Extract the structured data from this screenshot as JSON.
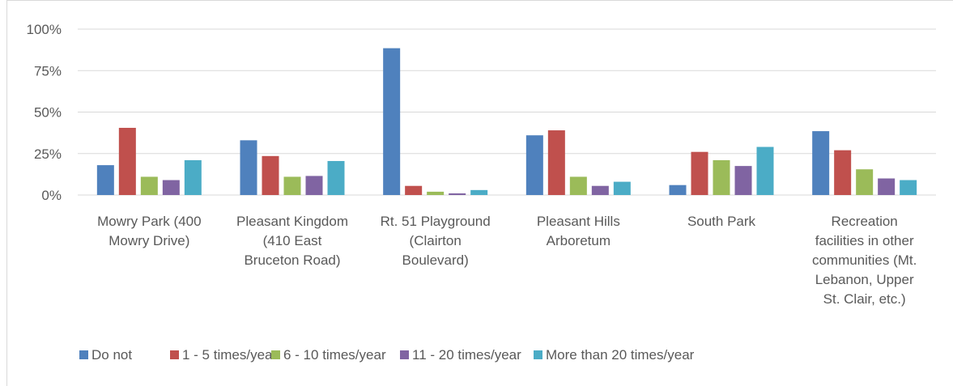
{
  "chart_data": {
    "type": "bar",
    "title": "",
    "xlabel": "",
    "ylabel": "",
    "ylim": [
      0,
      100
    ],
    "yticks": [
      0,
      25,
      50,
      75,
      100
    ],
    "ytick_labels": [
      "0%",
      "25%",
      "50%",
      "75%",
      "100%"
    ],
    "grid": true,
    "legend_position": "bottom",
    "categories": [
      [
        "Mowry Park (400",
        "Mowry Drive)"
      ],
      [
        "Pleasant Kingdom",
        "(410 East",
        "Bruceton Road)"
      ],
      [
        "Rt. 51 Playground",
        "(Clairton",
        "Boulevard)"
      ],
      [
        "Pleasant Hills",
        "Arboretum"
      ],
      [
        "South Park"
      ],
      [
        "Recreation",
        "facilities in other",
        "communities (Mt.",
        "Lebanon, Upper",
        "St. Clair, etc.)"
      ]
    ],
    "series": [
      {
        "name": "Do not",
        "color": "#4f81bd",
        "values": [
          18,
          33,
          88.5,
          36,
          6,
          38.5
        ]
      },
      {
        "name": "1 - 5 times/year",
        "color": "#c0504d",
        "values": [
          40.5,
          23.5,
          5.5,
          39,
          26,
          27
        ]
      },
      {
        "name": "6 - 10 times/year",
        "color": "#9bbb59",
        "values": [
          11,
          11,
          2,
          11,
          21,
          15.5
        ]
      },
      {
        "name": "11 - 20 times/year",
        "color": "#8064a2",
        "values": [
          9,
          11.5,
          1,
          5.5,
          17.5,
          10
        ]
      },
      {
        "name": "More than 20 times/year",
        "color": "#4bacc6",
        "values": [
          21,
          20.5,
          3,
          8,
          29,
          9
        ]
      }
    ]
  }
}
